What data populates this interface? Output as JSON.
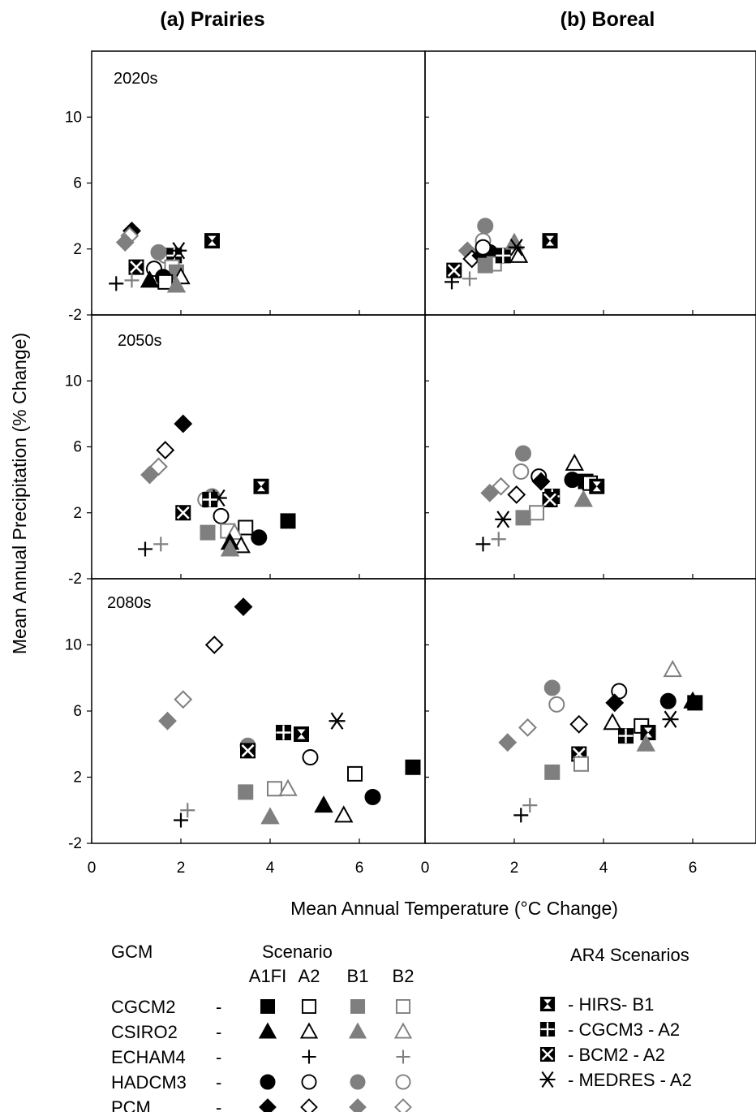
{
  "panel_titles": [
    "(a) Prairies",
    "(b) Boreal"
  ],
  "period_labels": [
    "2020s",
    "2050s",
    "2080s"
  ],
  "xlabel": "Mean Annual  Temperature (°C Change)",
  "ylabel": "Mean  Annual Precipitation  (% Change)",
  "legend": {
    "gcm_header": "GCM",
    "scenario_header": "Scenario",
    "scenarios": [
      "A1FI",
      "A2",
      "B1",
      "B2"
    ],
    "rows": [
      {
        "name": "CGCM2",
        "dash": "-",
        "marks": [
          "sq-black",
          "sq-open",
          "sq-gray",
          "sq-opengray"
        ]
      },
      {
        "name": "CSIRO2",
        "dash": "-",
        "marks": [
          "tri-black",
          "tri-open",
          "tri-gray",
          "tri-opengray"
        ]
      },
      {
        "name": "ECHAM4",
        "dash": "-",
        "marks": [
          "",
          "plus-black",
          "",
          "plus-gray"
        ]
      },
      {
        "name": "HADCM3",
        "dash": "-",
        "marks": [
          "circ-black",
          "circ-open",
          "circ-gray",
          "circ-opengray"
        ]
      },
      {
        "name": "PCM",
        "dash": "-",
        "marks": [
          "dia-black",
          "dia-open",
          "dia-gray",
          "dia-opengray"
        ]
      }
    ],
    "ar4_header": "AR4 Scenarios",
    "ar4": [
      {
        "label": "-  HIRS-  B1",
        "mark": "hirs"
      },
      {
        "label": "-  CGCM3 - A2",
        "mark": "cgcm3"
      },
      {
        "label": "-  BCM2 - A2",
        "mark": "bcm2"
      },
      {
        "label": "-  MEDRES - A2",
        "mark": "medres"
      }
    ]
  },
  "chart_data": [
    {
      "type": "scatter",
      "region": "Prairies",
      "period": "2020s",
      "xlim": [
        0,
        7.3
      ],
      "ylim": [
        -2,
        14
      ],
      "xticks": [
        "0",
        "2",
        "4",
        "6"
      ],
      "yticks": [
        "-2",
        "2",
        "6",
        "10"
      ],
      "points": [
        {
          "series": "PCM A1FI",
          "marker": "dia-black",
          "x": 0.9,
          "y": 3.1
        },
        {
          "series": "PCM B2",
          "marker": "dia-opengray",
          "x": 0.85,
          "y": 2.8
        },
        {
          "series": "PCM B1",
          "marker": "dia-gray",
          "x": 0.75,
          "y": 2.4
        },
        {
          "series": "BCM2 A2",
          "marker": "bcm2",
          "x": 1.0,
          "y": 0.9
        },
        {
          "series": "HADCM3 A2",
          "marker": "circ-open",
          "x": 1.4,
          "y": 0.8
        },
        {
          "series": "HADCM3 B2",
          "marker": "circ-opengray",
          "x": 1.65,
          "y": 1.6
        },
        {
          "series": "HADCM3 B1",
          "marker": "circ-gray",
          "x": 1.5,
          "y": 1.8
        },
        {
          "series": "CGCM3 A2",
          "marker": "cgcm3",
          "x": 1.85,
          "y": 1.6
        },
        {
          "series": "MEDRES A2",
          "marker": "medres",
          "x": 1.95,
          "y": 1.9
        },
        {
          "series": "CGCM2 B2",
          "marker": "sq-opengray",
          "x": 1.8,
          "y": 0.9
        },
        {
          "series": "CGCM2 B1",
          "marker": "sq-gray",
          "x": 1.9,
          "y": 0.6
        },
        {
          "series": "CSIRO2 A1FI",
          "marker": "tri-black",
          "x": 1.3,
          "y": 0.1
        },
        {
          "series": "HADCM3 A1FI",
          "marker": "circ-black",
          "x": 1.6,
          "y": 0.3
        },
        {
          "series": "CGCM2 A2",
          "marker": "sq-open",
          "x": 1.65,
          "y": 0.0
        },
        {
          "series": "CSIRO2 A2",
          "marker": "tri-open",
          "x": 2.0,
          "y": 0.3
        },
        {
          "series": "CSIRO2 B1",
          "marker": "tri-gray",
          "x": 1.9,
          "y": -0.2
        },
        {
          "series": "HIRS B1",
          "marker": "hirs",
          "x": 2.7,
          "y": 2.5
        },
        {
          "series": "ECHAM4 A2",
          "marker": "plus-black",
          "x": 0.55,
          "y": -0.1
        },
        {
          "series": "ECHAM4 B2",
          "marker": "plus-gray",
          "x": 0.9,
          "y": 0.1
        }
      ]
    },
    {
      "type": "scatter",
      "region": "Boreal",
      "period": "2020s",
      "xlim": [
        0,
        7.3
      ],
      "ylim": [
        -2,
        14
      ],
      "xticks": [
        "0",
        "2",
        "4",
        "6"
      ],
      "yticks": [],
      "points": [
        {
          "series": "HADCM3 B1",
          "marker": "circ-gray",
          "x": 1.35,
          "y": 3.4
        },
        {
          "series": "HADCM3 B2",
          "marker": "circ-opengray",
          "x": 1.3,
          "y": 2.5
        },
        {
          "series": "PCM B1",
          "marker": "dia-gray",
          "x": 0.95,
          "y": 1.9
        },
        {
          "series": "PCM A2",
          "marker": "dia-open",
          "x": 1.05,
          "y": 1.4
        },
        {
          "series": "PCM A1FI",
          "marker": "dia-black",
          "x": 1.25,
          "y": 1.6
        },
        {
          "series": "HADCM3 A1FI",
          "marker": "circ-black",
          "x": 1.45,
          "y": 1.8
        },
        {
          "series": "HADCM3 A2",
          "marker": "circ-open",
          "x": 1.3,
          "y": 2.1
        },
        {
          "series": "CGCM2 B2",
          "marker": "sq-opengray",
          "x": 1.55,
          "y": 1.1
        },
        {
          "series": "CGCM2 B1",
          "marker": "sq-gray",
          "x": 1.35,
          "y": 1.0
        },
        {
          "series": "CGCM3 A2",
          "marker": "cgcm3",
          "x": 1.75,
          "y": 1.6
        },
        {
          "series": "CSIRO2 B1",
          "marker": "tri-gray",
          "x": 2.0,
          "y": 2.4
        },
        {
          "series": "CSIRO2 A2",
          "marker": "tri-open",
          "x": 2.1,
          "y": 1.6
        },
        {
          "series": "MEDRES A2",
          "marker": "medres",
          "x": 2.05,
          "y": 2.1
        },
        {
          "series": "HIRS B1",
          "marker": "hirs",
          "x": 2.8,
          "y": 2.5
        },
        {
          "series": "BCM2 A2",
          "marker": "bcm2",
          "x": 0.65,
          "y": 0.7
        },
        {
          "series": "ECHAM4 A2",
          "marker": "plus-black",
          "x": 0.6,
          "y": 0.0
        },
        {
          "series": "ECHAM4 B2",
          "marker": "plus-gray",
          "x": 1.0,
          "y": 0.2
        }
      ]
    },
    {
      "type": "scatter",
      "region": "Prairies",
      "period": "2050s",
      "xlim": [
        0,
        7.3
      ],
      "ylim": [
        -2,
        14
      ],
      "xticks": [
        "0",
        "2",
        "4",
        "6"
      ],
      "yticks": [
        "-2",
        "2",
        "6",
        "10"
      ],
      "points": [
        {
          "series": "PCM A1FI",
          "marker": "dia-black",
          "x": 2.05,
          "y": 7.4
        },
        {
          "series": "PCM A2",
          "marker": "dia-open",
          "x": 1.65,
          "y": 5.8
        },
        {
          "series": "PCM B2",
          "marker": "dia-opengray",
          "x": 1.5,
          "y": 4.8
        },
        {
          "series": "PCM B1",
          "marker": "dia-gray",
          "x": 1.3,
          "y": 4.3
        },
        {
          "series": "HADCM3 B2",
          "marker": "circ-opengray",
          "x": 2.55,
          "y": 2.8
        },
        {
          "series": "HADCM3 B1",
          "marker": "circ-gray",
          "x": 2.7,
          "y": 3.0
        },
        {
          "series": "MEDRES A2",
          "marker": "medres",
          "x": 2.85,
          "y": 2.9
        },
        {
          "series": "CGCM3 A2",
          "marker": "cgcm3",
          "x": 2.65,
          "y": 2.8
        },
        {
          "series": "BCM2 A2",
          "marker": "bcm2",
          "x": 2.05,
          "y": 2.0
        },
        {
          "series": "HADCM3 A2",
          "marker": "circ-open",
          "x": 2.9,
          "y": 1.8
        },
        {
          "series": "CGCM2 A2",
          "marker": "sq-open",
          "x": 3.45,
          "y": 1.1
        },
        {
          "series": "CGCM2 B2",
          "marker": "sq-opengray",
          "x": 3.05,
          "y": 0.9
        },
        {
          "series": "CGCM2 B1",
          "marker": "sq-gray",
          "x": 2.6,
          "y": 0.8
        },
        {
          "series": "CSIRO2 B2",
          "marker": "tri-opengray",
          "x": 3.2,
          "y": 0.8
        },
        {
          "series": "CSIRO2 A2",
          "marker": "tri-open",
          "x": 3.35,
          "y": 0.0
        },
        {
          "series": "CSIRO2 A1FI",
          "marker": "tri-black",
          "x": 3.1,
          "y": 0.2
        },
        {
          "series": "CSIRO2 B1",
          "marker": "tri-gray",
          "x": 3.1,
          "y": -0.2
        },
        {
          "series": "HADCM3 A1FI",
          "marker": "circ-black",
          "x": 3.75,
          "y": 0.5
        },
        {
          "series": "CGCM2 A1FI",
          "marker": "sq-black",
          "x": 4.4,
          "y": 1.5
        },
        {
          "series": "HIRS B1",
          "marker": "hirs",
          "x": 3.8,
          "y": 3.6
        },
        {
          "series": "ECHAM4 A2",
          "marker": "plus-black",
          "x": 1.2,
          "y": -0.2
        },
        {
          "series": "ECHAM4 B2",
          "marker": "plus-gray",
          "x": 1.55,
          "y": 0.1
        }
      ]
    },
    {
      "type": "scatter",
      "region": "Boreal",
      "period": "2050s",
      "xlim": [
        0,
        7.3
      ],
      "ylim": [
        -2,
        14
      ],
      "xticks": [
        "0",
        "2",
        "4",
        "6"
      ],
      "yticks": [],
      "points": [
        {
          "series": "HADCM3 B1",
          "marker": "circ-gray",
          "x": 2.2,
          "y": 5.6
        },
        {
          "series": "HADCM3 B2",
          "marker": "circ-opengray",
          "x": 2.15,
          "y": 4.5
        },
        {
          "series": "CSIRO2 A2",
          "marker": "tri-open",
          "x": 3.35,
          "y": 5.0
        },
        {
          "series": "PCM B2",
          "marker": "dia-opengray",
          "x": 1.7,
          "y": 3.6
        },
        {
          "series": "PCM B1",
          "marker": "dia-gray",
          "x": 1.45,
          "y": 3.2
        },
        {
          "series": "PCM A2",
          "marker": "dia-open",
          "x": 2.05,
          "y": 3.1
        },
        {
          "series": "HADCM3 A2",
          "marker": "circ-open",
          "x": 2.55,
          "y": 4.2
        },
        {
          "series": "PCM A1FI",
          "marker": "dia-black",
          "x": 2.6,
          "y": 3.9
        },
        {
          "series": "HADCM3 A1FI",
          "marker": "circ-black",
          "x": 3.3,
          "y": 4.0
        },
        {
          "series": "CGCM2 A1FI",
          "marker": "sq-black",
          "x": 3.6,
          "y": 3.9
        },
        {
          "series": "CGCM2 A2",
          "marker": "sq-open",
          "x": 3.7,
          "y": 3.8
        },
        {
          "series": "HIRS B1",
          "marker": "hirs",
          "x": 3.85,
          "y": 3.6
        },
        {
          "series": "CSIRO2 B1",
          "marker": "tri-gray",
          "x": 3.55,
          "y": 2.8
        },
        {
          "series": "CGCM3 A2",
          "marker": "cgcm3",
          "x": 2.85,
          "y": 3.0
        },
        {
          "series": "BCM2 A2",
          "marker": "bcm2",
          "x": 2.8,
          "y": 2.8
        },
        {
          "series": "CGCM2 B2",
          "marker": "sq-opengray",
          "x": 2.5,
          "y": 2.0
        },
        {
          "series": "CGCM2 B1",
          "marker": "sq-gray",
          "x": 2.2,
          "y": 1.7
        },
        {
          "series": "MEDRES A2",
          "marker": "medres",
          "x": 1.75,
          "y": 1.6
        },
        {
          "series": "ECHAM4 A2",
          "marker": "plus-black",
          "x": 1.3,
          "y": 0.1
        },
        {
          "series": "ECHAM4 B2",
          "marker": "plus-gray",
          "x": 1.65,
          "y": 0.4
        }
      ]
    },
    {
      "type": "scatter",
      "region": "Prairies",
      "period": "2080s",
      "xlim": [
        0,
        7.3
      ],
      "ylim": [
        -2,
        14
      ],
      "xticks": [
        "0",
        "2",
        "4",
        "6"
      ],
      "yticks": [
        "-2",
        "2",
        "6",
        "10"
      ],
      "points": [
        {
          "series": "PCM A1FI",
          "marker": "dia-black",
          "x": 3.4,
          "y": 12.3
        },
        {
          "series": "PCM A2",
          "marker": "dia-open",
          "x": 2.75,
          "y": 10.0
        },
        {
          "series": "PCM B2",
          "marker": "dia-opengray",
          "x": 2.05,
          "y": 6.7
        },
        {
          "series": "PCM B1",
          "marker": "dia-gray",
          "x": 1.7,
          "y": 5.4
        },
        {
          "series": "HADCM3 B1",
          "marker": "circ-gray",
          "x": 3.5,
          "y": 3.9
        },
        {
          "series": "BCM2 A2",
          "marker": "bcm2",
          "x": 3.5,
          "y": 3.6
        },
        {
          "series": "CGCM3 A2",
          "marker": "cgcm3",
          "x": 4.3,
          "y": 4.7
        },
        {
          "series": "HIRS B1",
          "marker": "hirs",
          "x": 4.7,
          "y": 4.6
        },
        {
          "series": "MEDRES A2",
          "marker": "medres",
          "x": 5.5,
          "y": 5.4
        },
        {
          "series": "HADCM3 A2",
          "marker": "circ-open",
          "x": 4.9,
          "y": 3.2
        },
        {
          "series": "CGCM2 B2",
          "marker": "sq-opengray",
          "x": 4.1,
          "y": 1.3
        },
        {
          "series": "CSIRO2 B2",
          "marker": "tri-opengray",
          "x": 4.4,
          "y": 1.3
        },
        {
          "series": "CGCM2 B1",
          "marker": "sq-gray",
          "x": 3.45,
          "y": 1.1
        },
        {
          "series": "CSIRO2 B1",
          "marker": "tri-gray",
          "x": 4.0,
          "y": -0.4
        },
        {
          "series": "CSIRO2 A1FI",
          "marker": "tri-black",
          "x": 5.2,
          "y": 0.3
        },
        {
          "series": "CSIRO2 A2",
          "marker": "tri-open",
          "x": 5.65,
          "y": -0.3
        },
        {
          "series": "CGCM2 A2",
          "marker": "sq-open",
          "x": 5.9,
          "y": 2.2
        },
        {
          "series": "HADCM3 A1FI",
          "marker": "circ-black",
          "x": 6.3,
          "y": 0.8
        },
        {
          "series": "CGCM2 A1FI",
          "marker": "sq-black",
          "x": 7.2,
          "y": 2.6
        },
        {
          "series": "ECHAM4 A2",
          "marker": "plus-black",
          "x": 2.0,
          "y": -0.6
        },
        {
          "series": "ECHAM4 B2",
          "marker": "plus-gray",
          "x": 2.15,
          "y": 0.0
        }
      ]
    },
    {
      "type": "scatter",
      "region": "Boreal",
      "period": "2080s",
      "xlim": [
        0,
        7.3
      ],
      "ylim": [
        -2,
        14
      ],
      "xticks": [
        "0",
        "2",
        "4",
        "6"
      ],
      "yticks": [],
      "points": [
        {
          "series": "CSIRO2 B2",
          "marker": "tri-opengray",
          "x": 5.55,
          "y": 8.5
        },
        {
          "series": "HADCM3 B1",
          "marker": "circ-gray",
          "x": 2.85,
          "y": 7.4
        },
        {
          "series": "HADCM3 B2",
          "marker": "circ-opengray",
          "x": 2.95,
          "y": 6.4
        },
        {
          "series": "HADCM3 A2",
          "marker": "circ-open",
          "x": 4.35,
          "y": 7.2
        },
        {
          "series": "PCM A1FI",
          "marker": "dia-black",
          "x": 4.25,
          "y": 6.5
        },
        {
          "series": "HADCM3 A1FI",
          "marker": "circ-black",
          "x": 5.45,
          "y": 6.6
        },
        {
          "series": "CGCM2 A1FI",
          "marker": "sq-black",
          "x": 6.05,
          "y": 6.5
        },
        {
          "series": "CSIRO2 A1FI",
          "marker": "tri-black",
          "x": 6.0,
          "y": 6.6
        },
        {
          "series": "MEDRES A2",
          "marker": "medres",
          "x": 5.5,
          "y": 5.5
        },
        {
          "series": "CSIRO2 A2",
          "marker": "tri-open",
          "x": 4.2,
          "y": 5.3
        },
        {
          "series": "CGCM2 A2",
          "marker": "sq-open",
          "x": 4.85,
          "y": 5.1
        },
        {
          "series": "PCM A2",
          "marker": "dia-open",
          "x": 3.45,
          "y": 5.2
        },
        {
          "series": "PCM B2",
          "marker": "dia-opengray",
          "x": 2.3,
          "y": 5.0
        },
        {
          "series": "PCM B1",
          "marker": "dia-gray",
          "x": 1.85,
          "y": 4.1
        },
        {
          "series": "CGCM3 A2",
          "marker": "cgcm3",
          "x": 4.5,
          "y": 4.5
        },
        {
          "series": "HIRS B1",
          "marker": "hirs",
          "x": 5.0,
          "y": 4.7
        },
        {
          "series": "CSIRO2 B1",
          "marker": "tri-gray",
          "x": 4.95,
          "y": 4.0
        },
        {
          "series": "BCM2 A2",
          "marker": "bcm2",
          "x": 3.45,
          "y": 3.4
        },
        {
          "series": "CGCM2 B2",
          "marker": "sq-opengray",
          "x": 3.5,
          "y": 2.8
        },
        {
          "series": "CGCM2 B1",
          "marker": "sq-gray",
          "x": 2.85,
          "y": 2.3
        },
        {
          "series": "ECHAM4 A2",
          "marker": "plus-black",
          "x": 2.15,
          "y": -0.3
        },
        {
          "series": "ECHAM4 B2",
          "marker": "plus-gray",
          "x": 2.35,
          "y": 0.3
        }
      ]
    }
  ]
}
